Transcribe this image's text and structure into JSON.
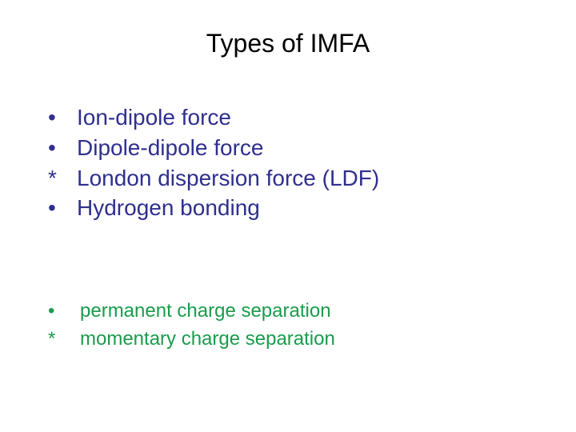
{
  "title": {
    "text": "Types of IMFA",
    "color": "#000000",
    "fontsize": 32
  },
  "main_list": {
    "fontsize": 28,
    "bullet_color": "#2f2f8f",
    "text_color": "#2f2f8f",
    "items": [
      {
        "marker": "•",
        "text": "Ion-dipole force"
      },
      {
        "marker": "•",
        "text": "Dipole-dipole force"
      },
      {
        "marker": "*",
        "text": "London dispersion force (LDF)"
      },
      {
        "marker": "•",
        "text": "Hydrogen bonding"
      }
    ]
  },
  "sub_list": {
    "fontsize": 24,
    "bullet_color": "#1a9c4b",
    "text_color": "#1a9c4b",
    "items": [
      {
        "marker": "•",
        "text": "permanent charge separation"
      },
      {
        "marker": "*",
        "text": "momentary charge separation"
      }
    ]
  },
  "background_color": "#ffffff",
  "slide_width": 720,
  "slide_height": 540
}
